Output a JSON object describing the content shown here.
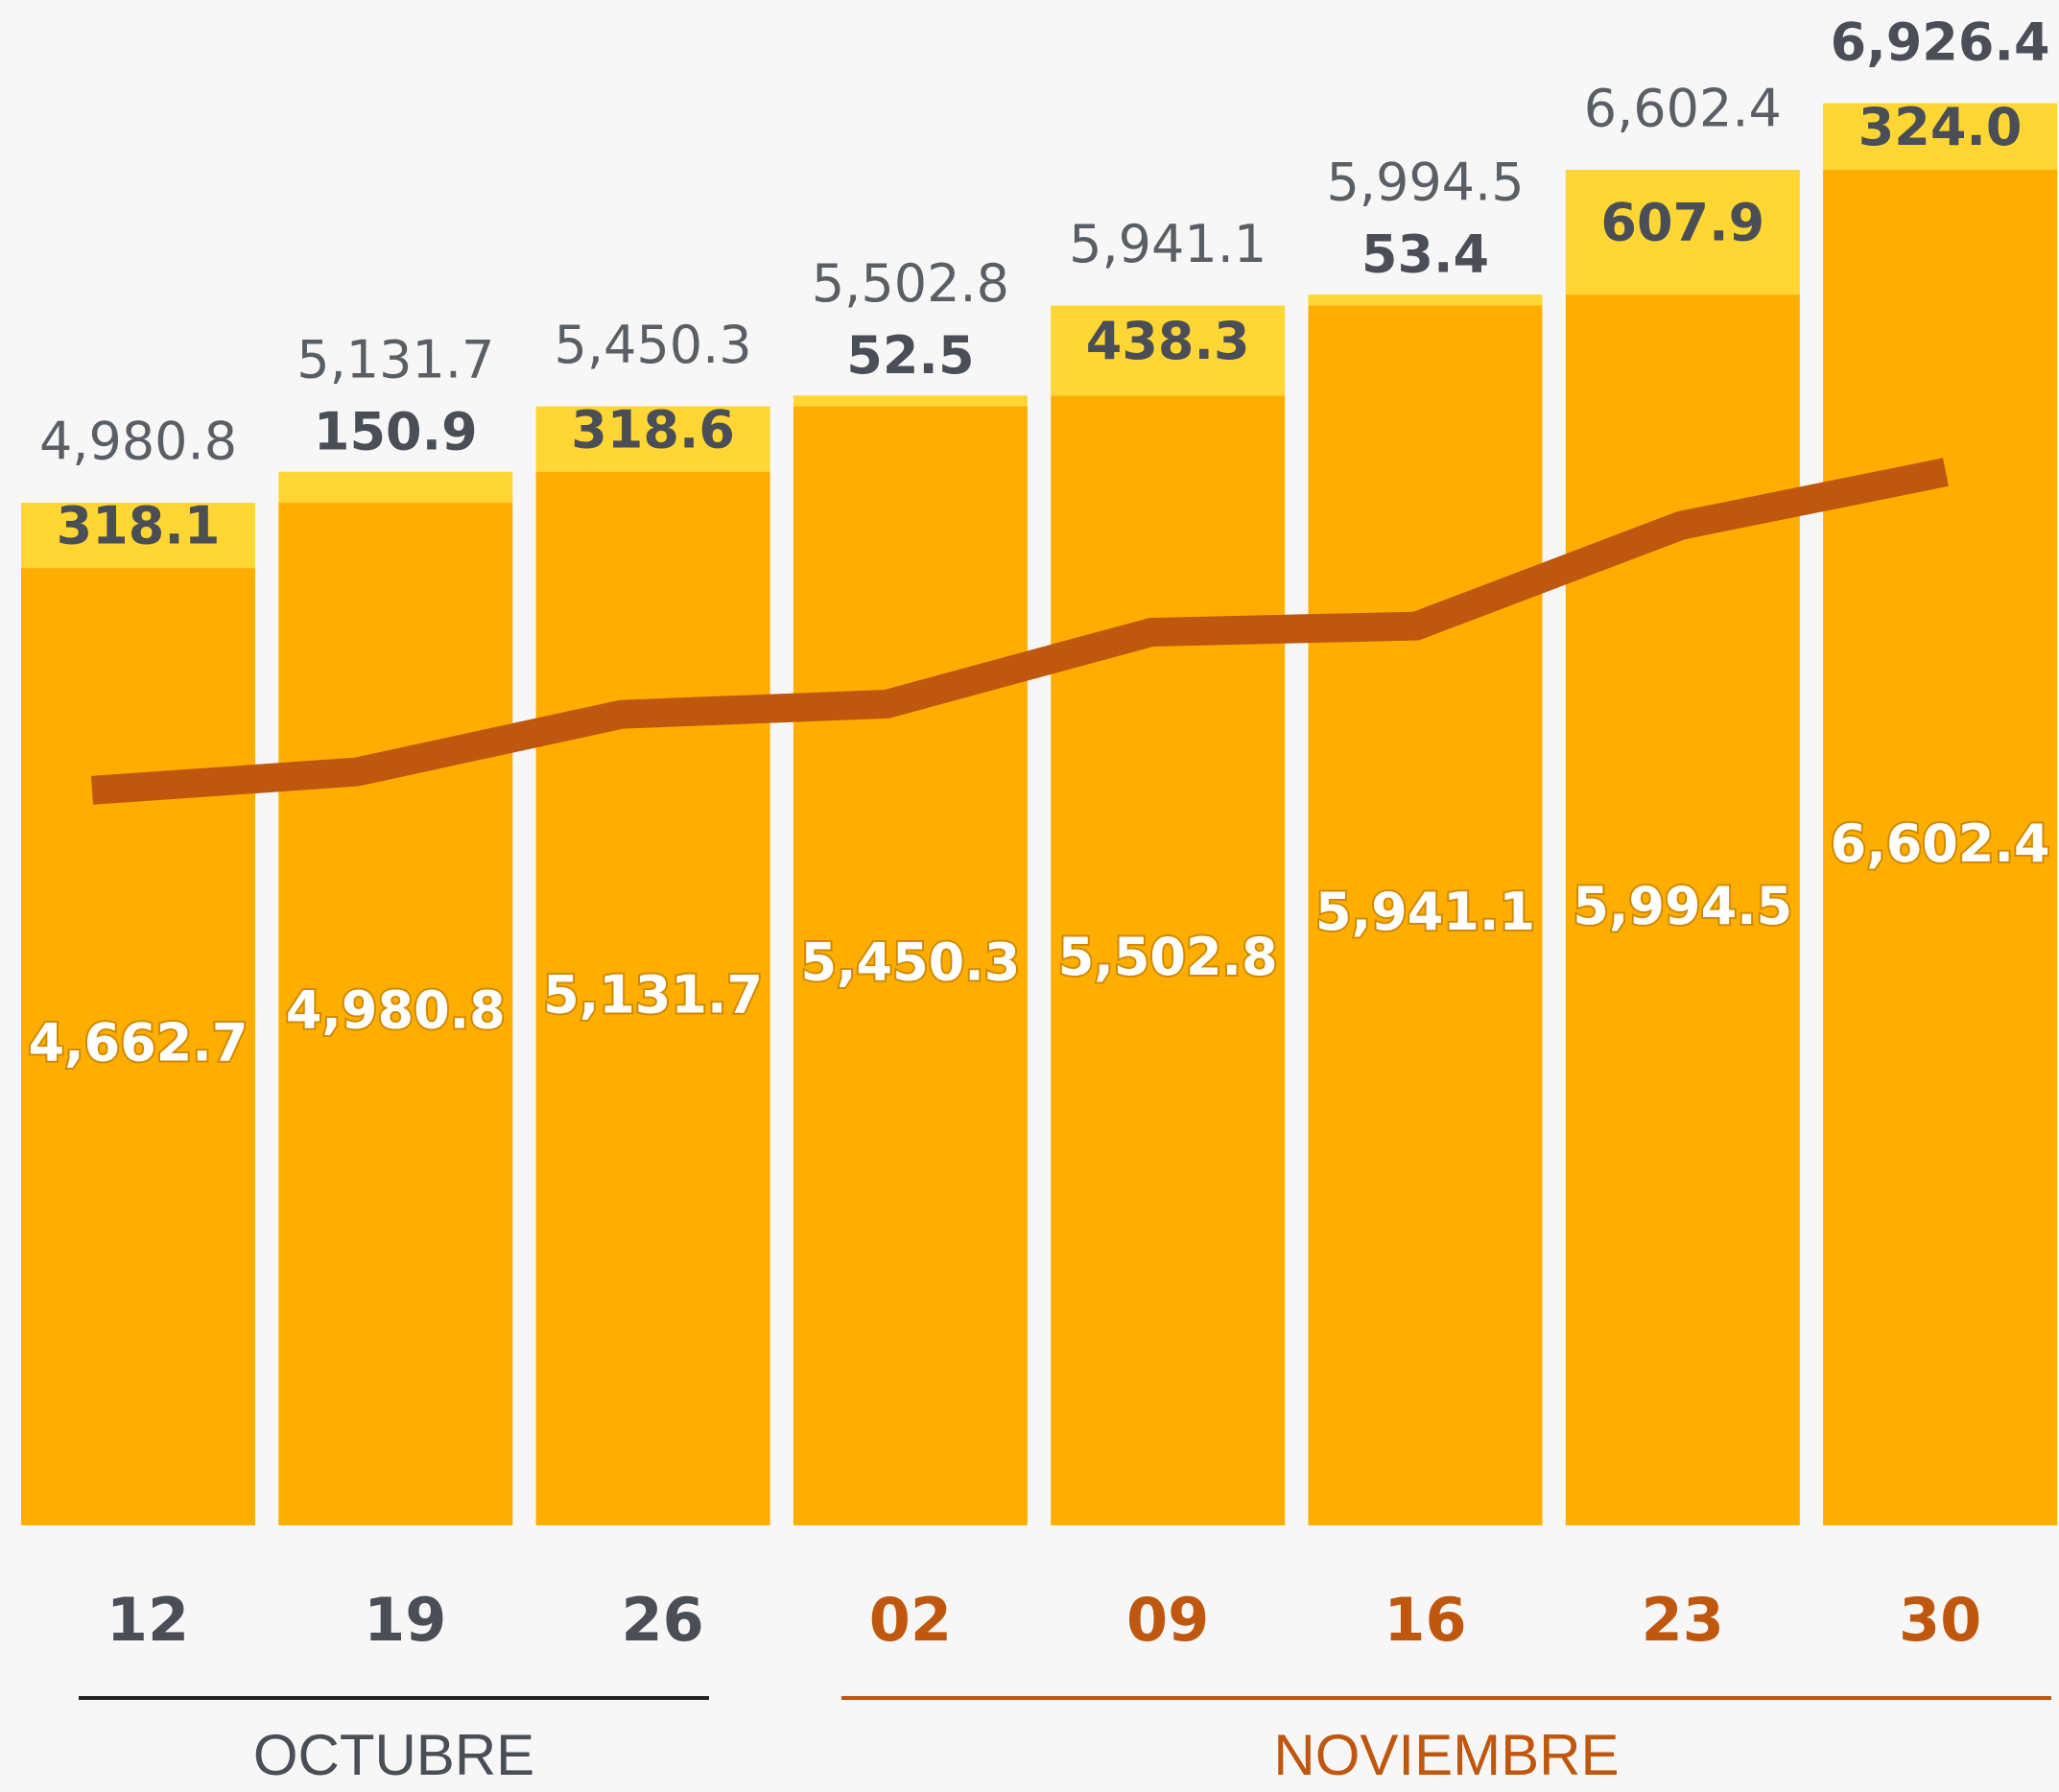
{
  "chart_data": {
    "type": "bar",
    "stacked": true,
    "categories": [
      "12",
      "19",
      "26",
      "02",
      "09",
      "16",
      "23",
      "30"
    ],
    "groups": [
      {
        "label": "OCTUBRE",
        "span": 3,
        "color": "#4a4f57"
      },
      {
        "label": "NOVIEMBRE",
        "span": 5,
        "color": "#c0570e"
      }
    ],
    "series": [
      {
        "color": "#ffae00",
        "values": [
          4662.7,
          4980.8,
          5131.7,
          5450.3,
          5502.8,
          5941.1,
          5994.5,
          6602.4
        ],
        "value_labels": [
          "4,662.7",
          "4,980.8",
          "5,131.7",
          "5,450.3",
          "5,502.8",
          "5,941.1",
          "5,994.5",
          "6,602.4"
        ]
      },
      {
        "color": "#ffd633",
        "values": [
          318.1,
          150.9,
          318.6,
          52.5,
          438.3,
          53.4,
          607.9,
          324.0
        ],
        "value_labels": [
          "318.1",
          "150.9",
          "318.6",
          "52.5",
          "438.3",
          "53.4",
          "607.9",
          "324.0"
        ]
      },
      {
        "type": "line",
        "color": "#c0570e",
        "values": [
          3580,
          3670,
          3950,
          4000,
          4350,
          4380,
          4870,
          5130
        ]
      }
    ],
    "total_labels": [
      "4,980.8",
      "5,131.7",
      "5,450.3",
      "5,502.8",
      "5,941.1",
      "5,994.5",
      "6,602.4",
      "6,926.4"
    ],
    "ylim": [
      0,
      7420
    ]
  }
}
